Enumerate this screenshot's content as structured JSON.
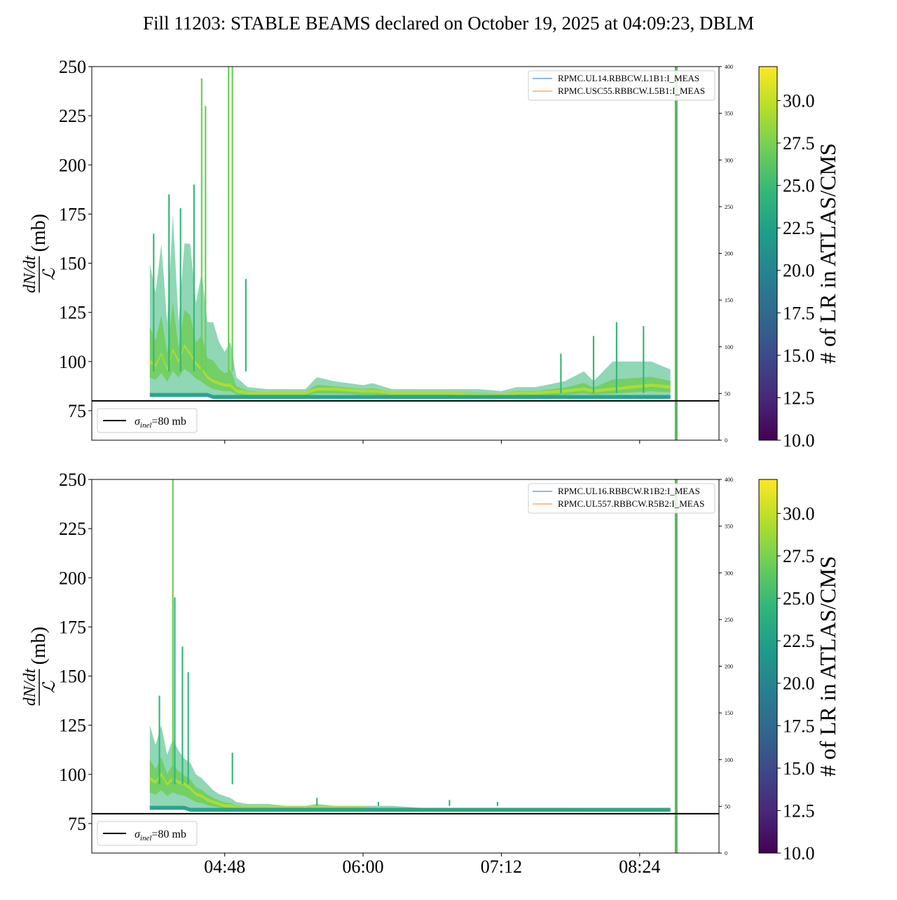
{
  "title": "Fill 11203: STABLE BEAMS declared on October 19, 2025 at 04:09:23, DBLM",
  "colors": {
    "viridis": [
      "#440154",
      "#482878",
      "#3e4989",
      "#31688e",
      "#26828e",
      "#1f9e89",
      "#35b779",
      "#6ece58",
      "#b5de2b",
      "#fde725"
    ],
    "reference_line": "#000000",
    "series_blue": "#1f77b4",
    "series_orange": "#ff7f0e",
    "end_marker": "#5cb85c"
  },
  "chart_data": [
    {
      "type": "area",
      "panel": "top",
      "x_ticks": [
        "04:48",
        "06:00",
        "07:12",
        "08:24"
      ],
      "ylabel_num": "dN/dt",
      "ylabel_den": "ℒ",
      "ylabel_unit": "(mb)",
      "ylim": [
        60,
        250
      ],
      "y_ticks": [
        75,
        100,
        125,
        150,
        175,
        200,
        225,
        250
      ],
      "y2lim": [
        0,
        400
      ],
      "y2_ticks": [
        0,
        50,
        100,
        150,
        200,
        250,
        300,
        350,
        400
      ],
      "reference": {
        "value": 80,
        "label_sym": "σ",
        "label_sub": "inel",
        "label_rest": "=80 mb"
      },
      "legend": [
        "RPMC.UL14.RBBCW.L1B1:I_MEAS",
        "RPMC.USC55.RBBCW.L5B1:I_MEAS"
      ],
      "colorbar": {
        "label": "# of LR in ATLAS/CMS",
        "range": [
          10,
          32
        ],
        "ticks": [
          "10.0",
          "12.5",
          "15.0",
          "17.5",
          "20.0",
          "22.5",
          "25.0",
          "27.5",
          "30.0"
        ]
      },
      "envelope": {
        "x": [
          "04:09",
          "04:12",
          "04:15",
          "04:18",
          "04:21",
          "04:24",
          "04:27",
          "04:30",
          "04:33",
          "04:36",
          "04:39",
          "04:42",
          "04:45",
          "04:48",
          "04:51",
          "04:54",
          "05:00",
          "05:10",
          "05:20",
          "05:30",
          "05:36",
          "05:45",
          "06:00",
          "06:05",
          "06:15",
          "06:30",
          "06:45",
          "07:00",
          "07:12",
          "07:20",
          "07:30",
          "07:45",
          "07:55",
          "08:00",
          "08:10",
          "08:20",
          "08:30",
          "08:40"
        ],
        "upper": [
          150,
          135,
          160,
          120,
          175,
          120,
          160,
          160,
          130,
          145,
          120,
          120,
          110,
          105,
          110,
          92,
          87,
          86,
          86,
          86,
          92,
          90,
          88,
          89,
          86,
          86,
          86,
          86,
          85,
          87,
          87,
          90,
          95,
          90,
          100,
          100,
          100,
          96
        ],
        "mid": [
          100,
          98,
          104,
          96,
          106,
          100,
          108,
          104,
          99,
          96,
          92,
          90,
          89,
          88,
          88,
          85,
          84,
          84,
          84,
          84,
          86,
          86,
          85,
          85,
          84,
          84,
          84,
          83,
          83,
          84,
          84,
          85,
          86,
          85,
          86,
          87,
          88,
          87
        ],
        "lower": [
          82,
          82,
          82,
          82,
          82,
          82,
          82,
          82,
          82,
          82,
          82,
          81,
          81,
          81,
          81,
          81,
          81,
          81,
          81,
          81,
          81,
          81,
          81,
          81,
          81,
          81,
          81,
          81,
          81,
          81,
          81,
          81,
          81,
          81,
          81,
          81,
          81,
          81
        ]
      },
      "spikes": [
        {
          "x": "04:11",
          "y": 165
        },
        {
          "x": "04:19",
          "y": 185
        },
        {
          "x": "04:25",
          "y": 178
        },
        {
          "x": "04:32",
          "y": 190
        },
        {
          "x": "04:36",
          "y": 244
        },
        {
          "x": "04:38",
          "y": 230
        },
        {
          "x": "04:50",
          "y": 250
        },
        {
          "x": "04:52",
          "y": 250
        },
        {
          "x": "04:59",
          "y": 142
        },
        {
          "x": "07:43",
          "y": 104
        },
        {
          "x": "08:00",
          "y": 113
        },
        {
          "x": "08:12",
          "y": 120
        },
        {
          "x": "08:26",
          "y": 118
        }
      ],
      "end_time": "08:43"
    },
    {
      "type": "area",
      "panel": "bottom",
      "x_ticks": [
        "04:48",
        "06:00",
        "07:12",
        "08:24"
      ],
      "ylabel_num": "dN/dt",
      "ylabel_den": "ℒ",
      "ylabel_unit": "(mb)",
      "ylim": [
        60,
        250
      ],
      "y_ticks": [
        75,
        100,
        125,
        150,
        175,
        200,
        225,
        250
      ],
      "y2lim": [
        0,
        400
      ],
      "y2_ticks": [
        0,
        50,
        100,
        150,
        200,
        250,
        300,
        350,
        400
      ],
      "reference": {
        "value": 80,
        "label_sym": "σ",
        "label_sub": "inel",
        "label_rest": "=80 mb"
      },
      "legend": [
        "RPMC.UL16.RBBCW.R1B2:I_MEAS",
        "RPMC.UL557.RBBCW.R5B2:I_MEAS"
      ],
      "colorbar": {
        "label": "# of LR in ATLAS/CMS",
        "range": [
          10,
          32
        ],
        "ticks": [
          "10.0",
          "12.5",
          "15.0",
          "17.5",
          "20.0",
          "22.5",
          "25.0",
          "27.5",
          "30.0"
        ]
      },
      "envelope": {
        "x": [
          "04:09",
          "04:12",
          "04:15",
          "04:18",
          "04:21",
          "04:24",
          "04:27",
          "04:30",
          "04:33",
          "04:36",
          "04:39",
          "04:42",
          "04:45",
          "04:48",
          "04:51",
          "04:54",
          "05:00",
          "05:10",
          "05:20",
          "05:30",
          "05:36",
          "05:45",
          "06:00",
          "06:05",
          "06:15",
          "06:30",
          "06:45",
          "07:00",
          "07:12",
          "07:20",
          "07:30",
          "07:45",
          "07:55",
          "08:00",
          "08:10",
          "08:20",
          "08:30",
          "08:40"
        ],
        "upper": [
          125,
          115,
          125,
          110,
          118,
          112,
          108,
          106,
          100,
          98,
          95,
          92,
          90,
          89,
          88,
          86,
          85,
          85,
          84,
          84,
          85,
          84,
          84,
          84,
          84,
          83,
          83,
          83,
          83,
          83,
          83,
          83,
          82,
          82,
          82,
          82,
          82,
          82
        ],
        "mid": [
          98,
          96,
          100,
          95,
          98,
          96,
          95,
          93,
          90,
          89,
          87,
          86,
          85,
          84,
          84,
          83,
          83,
          83,
          83,
          83,
          83,
          83,
          83,
          82,
          82,
          82,
          82,
          82,
          82,
          82,
          82,
          82,
          82,
          82,
          82,
          82,
          82,
          82
        ],
        "lower": [
          82,
          82,
          82,
          82,
          82,
          82,
          82,
          81,
          81,
          81,
          81,
          81,
          81,
          81,
          81,
          81,
          81,
          81,
          81,
          81,
          81,
          81,
          81,
          81,
          81,
          81,
          81,
          81,
          81,
          81,
          81,
          81,
          81,
          81,
          81,
          81,
          81,
          81
        ]
      },
      "spikes": [
        {
          "x": "04:14",
          "y": 140
        },
        {
          "x": "04:21",
          "y": 250
        },
        {
          "x": "04:22",
          "y": 190
        },
        {
          "x": "04:26",
          "y": 165
        },
        {
          "x": "04:29",
          "y": 152
        },
        {
          "x": "04:52",
          "y": 111
        },
        {
          "x": "05:36",
          "y": 88
        },
        {
          "x": "06:08",
          "y": 86
        },
        {
          "x": "06:45",
          "y": 87
        },
        {
          "x": "07:10",
          "y": 86
        }
      ],
      "end_time": "08:43"
    }
  ]
}
